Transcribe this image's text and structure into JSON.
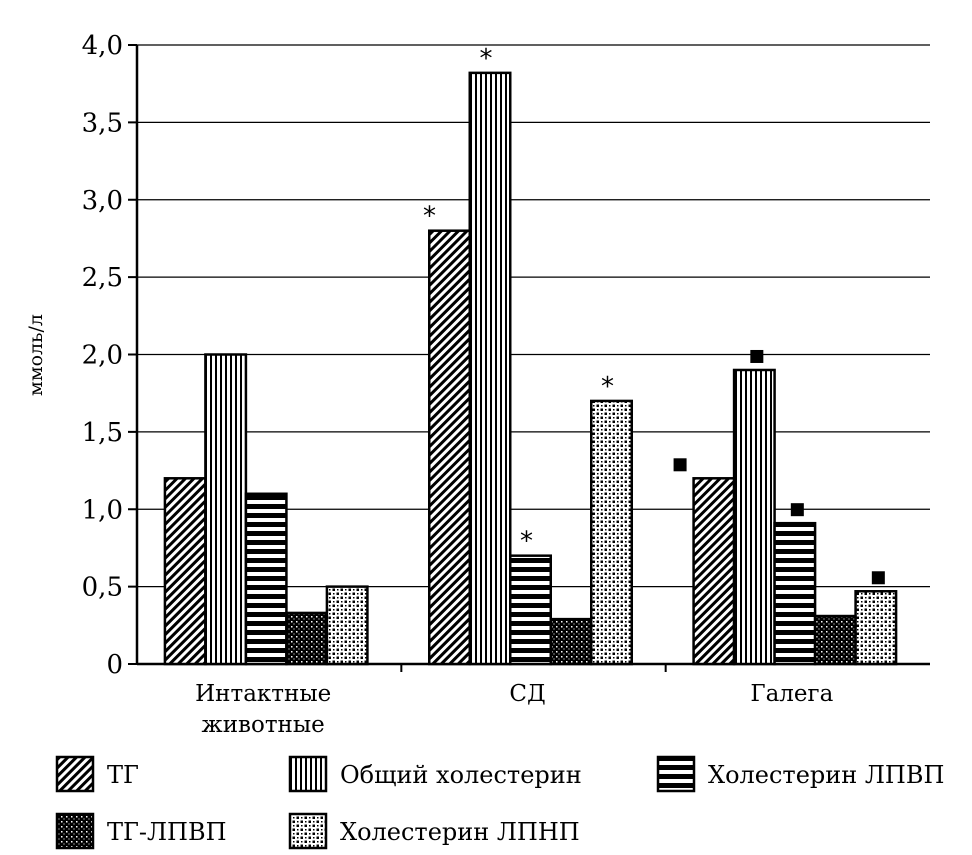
{
  "chart_data": {
    "type": "bar",
    "ylabel": "ммоль/л",
    "xlabel": "",
    "ylim": [
      0,
      4.0
    ],
    "yticks": [
      "0",
      "0,5",
      "1,0",
      "1,5",
      "2,0",
      "2,5",
      "3,0",
      "3,5",
      "4,0"
    ],
    "grid": true,
    "legend_position": "bottom",
    "categories": [
      [
        "Интактные",
        "животные"
      ],
      [
        "СД"
      ],
      [
        "Галега"
      ]
    ],
    "series": [
      {
        "name": "ТГ",
        "pattern": "diagonal-hatch",
        "values": [
          1.2,
          2.8,
          1.2
        ],
        "markers": [
          "",
          "*",
          "square"
        ]
      },
      {
        "name": "Общий холестерин",
        "pattern": "vertical-lines",
        "values": [
          2.0,
          3.82,
          1.9
        ],
        "markers": [
          "",
          "*",
          "square"
        ]
      },
      {
        "name": "Холестерин ЛПВП",
        "pattern": "horizontal-lines",
        "values": [
          1.1,
          0.7,
          0.91
        ],
        "markers": [
          "",
          "*",
          "square"
        ]
      },
      {
        "name": "ТГ-ЛПВП",
        "pattern": "dense-dots",
        "values": [
          0.33,
          0.29,
          0.31
        ],
        "markers": [
          "",
          "",
          ""
        ]
      },
      {
        "name": "Холестерин ЛПНП",
        "pattern": "sparse-dots",
        "values": [
          0.5,
          1.7,
          0.47
        ],
        "markers": [
          "",
          "*",
          "square"
        ]
      }
    ],
    "colors": {
      "fill": "#000000",
      "background": "#ffffff",
      "grid": "#000000"
    }
  }
}
